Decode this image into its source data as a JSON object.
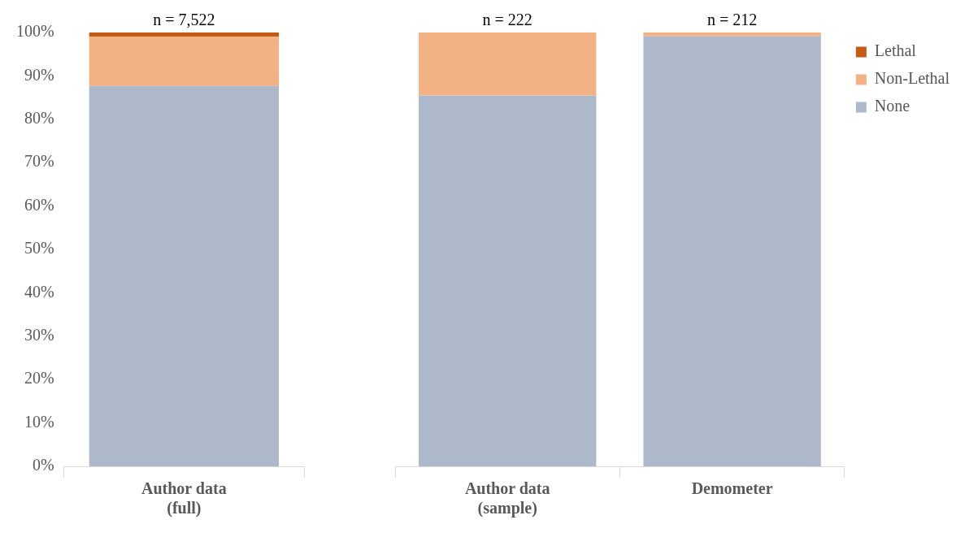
{
  "chart_data": [
    {
      "type": "bar",
      "stacked": true,
      "categories": [
        "Author data (full)"
      ],
      "series": [
        {
          "color": "#adb9ca",
          "values": [
            87.7
          ]
        },
        {
          "color": "#f4b183",
          "values": [
            11.3
          ]
        },
        {
          "color": "#c55a11",
          "values": [
            1.0
          ]
        }
      ],
      "ylim": [
        0,
        100
      ],
      "yticks": [
        {
          "value": 0,
          "label": "0%"
        },
        {
          "value": 10,
          "label": "10%"
        },
        {
          "value": 20,
          "label": "20%"
        },
        {
          "value": 30,
          "label": "30%"
        },
        {
          "value": 40,
          "label": "40%"
        },
        {
          "value": 50,
          "label": "50%"
        },
        {
          "value": 60,
          "label": "60%"
        },
        {
          "value": 70,
          "label": "70%"
        },
        {
          "value": 80,
          "label": "80%"
        },
        {
          "value": 90,
          "label": "90%"
        },
        {
          "value": 100,
          "label": "100%"
        }
      ],
      "grid": false,
      "legend": false,
      "annotations": [
        {
          "text": "n = 7,522",
          "x": "Author data (full)",
          "y": 100
        }
      ]
    },
    {
      "type": "bar",
      "stacked": true,
      "categories": [
        "Author data (sample)",
        "Demometer"
      ],
      "series": [
        {
          "name": "None",
          "color": "#adb9ca",
          "values": [
            85.5,
            99.1
          ]
        },
        {
          "name": "Non-Lethal",
          "color": "#f4b183",
          "values": [
            14.5,
            0.9
          ]
        },
        {
          "name": "Lethal",
          "color": "#c55a11",
          "values": [
            0,
            0
          ]
        }
      ],
      "ylim": [
        0,
        100
      ],
      "tick_labels": "x",
      "grid": false,
      "legend": "top right",
      "annotations": [
        {
          "text": "n = 222",
          "x": "Author data (sample)",
          "y": 100
        },
        {
          "text": "n = 212",
          "x": "Demometer",
          "y": 100
        }
      ]
    }
  ]
}
